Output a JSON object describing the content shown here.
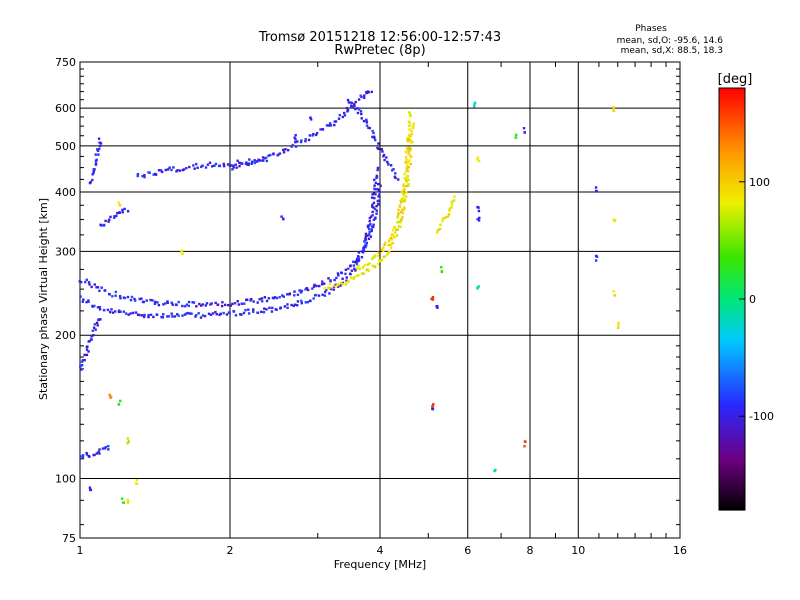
{
  "chart_data": {
    "type": "scatter",
    "title": "Tromsø 20151218 12:56:00-12:57:43",
    "subtitle": "RwPretec (8p)",
    "stats": {
      "heading": "Phases",
      "line_o": "mean, sd,O: -95.6, 14.6",
      "line_x": "mean, sd,X:  88.5, 18.3"
    },
    "xlabel": "Frequency [MHz]",
    "ylabel": "Stationary phase Virtual Height [km]",
    "x_scale": "log2",
    "y_scale": "log",
    "xlim": [
      1,
      16
    ],
    "ylim": [
      75,
      750
    ],
    "x_ticks": [
      1,
      2,
      4,
      6,
      8,
      10,
      16
    ],
    "x_tick_labels": [
      "1",
      "2",
      "4",
      "6",
      "8",
      "10",
      "16"
    ],
    "x_major_grid": [
      2,
      4,
      6,
      8,
      10
    ],
    "x_minor_ticks": [
      3,
      5,
      7,
      9,
      11,
      12,
      13,
      14,
      15
    ],
    "y_ticks": [
      75,
      100,
      200,
      300,
      400,
      500,
      600,
      750
    ],
    "y_tick_labels": [
      "75",
      "100",
      "200",
      "300",
      "400",
      "500",
      "600",
      "750"
    ],
    "y_major_grid": [
      100,
      200,
      300,
      400,
      500,
      600
    ],
    "grid": true,
    "colorbar": {
      "label": "[deg]",
      "range": [
        -180,
        180
      ],
      "ticks": [
        -100,
        0,
        100
      ],
      "tick_labels": [
        "-100",
        "0",
        "100"
      ],
      "colormap": "rainbow"
    },
    "series": [
      {
        "mode": "O",
        "mean_phase": -95.6,
        "color": "#1a3cff",
        "segments": [
          {
            "x": [
              1.0,
              1.1,
              1.25,
              1.45,
              1.7,
              2.0,
              2.4,
              2.8,
              3.2,
              3.5,
              3.7,
              3.85,
              3.95
            ],
            "y": [
              240,
              226,
              222,
              220,
              220,
              222,
              226,
              234,
              248,
              268,
              300,
              360,
              450
            ]
          },
          {
            "x": [
              1.0,
              1.15,
              1.35,
              1.6,
              1.9,
              2.2,
              2.6,
              3.0,
              3.4,
              3.7,
              3.9,
              4.0
            ],
            "y": [
              262,
              245,
              235,
              232,
              232,
              235,
              242,
              254,
              272,
              300,
              345,
              420
            ]
          },
          {
            "x": [
              2.0,
              2.3,
              2.6,
              2.9,
              3.2,
              3.4,
              3.6,
              3.75,
              3.85
            ],
            "y": [
              450,
              468,
              492,
              520,
              555,
              585,
              620,
              640,
              660
            ]
          },
          {
            "x": [
              1.3,
              1.5,
              1.8,
              2.1,
              2.4
            ],
            "y": [
              430,
              445,
              455,
              460,
              470
            ]
          },
          {
            "x": [
              3.45,
              3.6,
              3.75,
              3.9,
              4.05,
              4.2,
              4.35
            ],
            "y": [
              620,
              600,
              560,
              520,
              480,
              450,
              420
            ]
          },
          {
            "x": [
              1.0,
              1.03,
              1.06,
              1.08,
              1.1
            ],
            "y": [
              170,
              185,
              200,
              210,
              220
            ]
          },
          {
            "x": [
              1.0,
              1.05,
              1.1,
              1.15
            ],
            "y": [
              112,
              112,
              114,
              116
            ]
          },
          {
            "x": [
              1.1,
              1.15,
              1.2,
              1.25
            ],
            "y": [
              340,
              350,
              360,
              370
            ]
          },
          {
            "x": [
              1.05,
              1.08,
              1.1
            ],
            "y": [
              420,
              470,
              520
            ]
          }
        ],
        "points": [
          {
            "x": 2.55,
            "y": 355
          },
          {
            "x": 2.7,
            "y": 520
          },
          {
            "x": 2.9,
            "y": 565
          },
          {
            "x": 5.1,
            "y": 140
          },
          {
            "x": 5.2,
            "y": 230
          },
          {
            "x": 6.3,
            "y": 370
          },
          {
            "x": 6.3,
            "y": 350
          },
          {
            "x": 7.8,
            "y": 540
          },
          {
            "x": 10.9,
            "y": 405
          },
          {
            "x": 10.9,
            "y": 290
          },
          {
            "x": 1.05,
            "y": 95
          }
        ]
      },
      {
        "mode": "X",
        "mean_phase": 88.5,
        "color": "#e8e800",
        "segments": [
          {
            "x": [
              3.1,
              3.4,
              3.7,
              3.95,
              4.2,
              4.4,
              4.55,
              4.65
            ],
            "y": [
              252,
              258,
              268,
              282,
              305,
              345,
              420,
              560
            ]
          },
          {
            "x": [
              3.6,
              3.9,
              4.15,
              4.35,
              4.5,
              4.6
            ],
            "y": [
              275,
              290,
              312,
              350,
              430,
              600
            ]
          },
          {
            "x": [
              5.2,
              5.35,
              5.5,
              5.65
            ],
            "y": [
              330,
              345,
              365,
              395
            ]
          }
        ],
        "points": [
          {
            "x": 6.3,
            "y": 470
          },
          {
            "x": 11.8,
            "y": 600
          },
          {
            "x": 11.8,
            "y": 350
          },
          {
            "x": 11.8,
            "y": 245
          },
          {
            "x": 12.0,
            "y": 210
          },
          {
            "x": 1.2,
            "y": 380
          },
          {
            "x": 1.3,
            "y": 98
          },
          {
            "x": 1.25,
            "y": 90
          },
          {
            "x": 1.6,
            "y": 300
          }
        ]
      },
      {
        "mode": "mixed",
        "points": [
          {
            "x": 5.1,
            "y": 142,
            "phase": 160
          },
          {
            "x": 5.1,
            "y": 240,
            "phase": 160
          },
          {
            "x": 7.8,
            "y": 118,
            "phase": 160
          },
          {
            "x": 6.8,
            "y": 105,
            "phase": -20
          },
          {
            "x": 6.3,
            "y": 250,
            "phase": -20
          },
          {
            "x": 6.2,
            "y": 610,
            "phase": -20
          },
          {
            "x": 7.5,
            "y": 520,
            "phase": 30
          },
          {
            "x": 1.2,
            "y": 145,
            "phase": 30
          },
          {
            "x": 1.25,
            "y": 120,
            "phase": 60
          },
          {
            "x": 1.22,
            "y": 90,
            "phase": 30
          },
          {
            "x": 1.15,
            "y": 150,
            "phase": 140
          },
          {
            "x": 5.3,
            "y": 275,
            "phase": 30
          }
        ]
      }
    ]
  }
}
